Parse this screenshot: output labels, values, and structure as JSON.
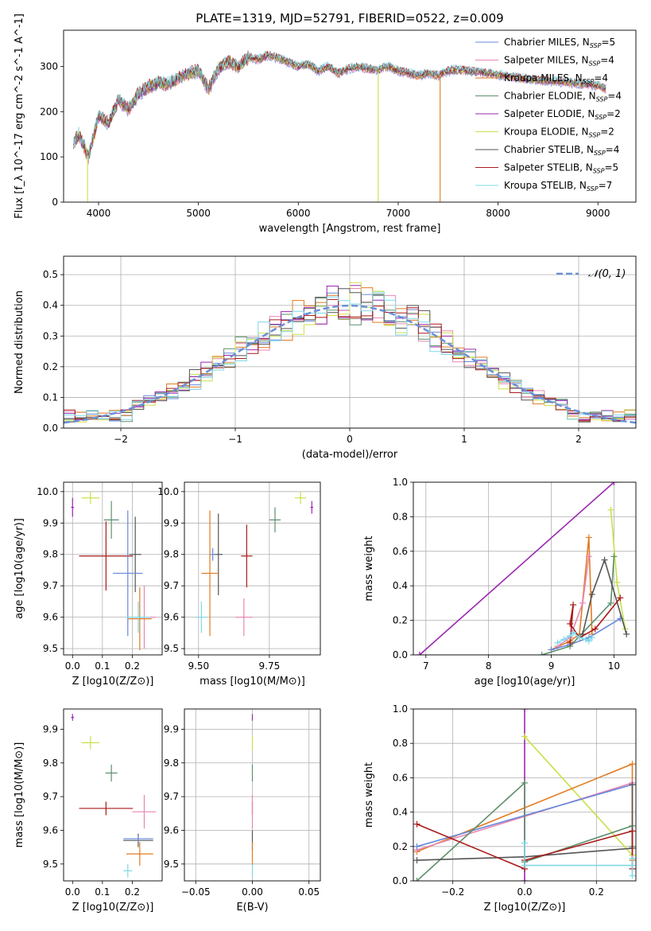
{
  "figure": {
    "title": "PLATE=1319, MJD=52791, FIBERID=0522, z=0.009"
  },
  "chart_data": [
    {
      "id": "spectrum",
      "type": "line",
      "xlabel": "wavelength [Angstrom, rest frame]",
      "ylabel": "Flux [f_λ 10^-17 erg cm^-2 s^-1 A^-1]",
      "xlim": [
        3650,
        9380
      ],
      "ylim": [
        0,
        380
      ],
      "xticks": [
        4000,
        5000,
        6000,
        7000,
        8000,
        9000
      ],
      "yticks": [
        0,
        100,
        200,
        300
      ],
      "legend_position": "top-right",
      "continuum": {
        "x": [
          3750,
          3800,
          3900,
          4000,
          4100,
          4200,
          4300,
          4400,
          4500,
          4600,
          4700,
          4800,
          4900,
          5000,
          5100,
          5200,
          5300,
          5400,
          5500,
          5600,
          5700,
          5800,
          5900,
          6000,
          6100,
          6200,
          6300,
          6400,
          6500,
          6600,
          6700,
          6800,
          6900,
          7000,
          7100,
          7200,
          7300,
          7400,
          7500,
          7600,
          7700,
          7800,
          7900,
          8000,
          8100,
          8200,
          8300,
          8400,
          8500,
          8600,
          8700,
          8800,
          8900,
          9000,
          9080
        ],
        "y": [
          130,
          150,
          100,
          190,
          175,
          225,
          205,
          240,
          255,
          265,
          260,
          275,
          285,
          290,
          250,
          295,
          310,
          300,
          320,
          315,
          325,
          318,
          310,
          300,
          305,
          290,
          300,
          285,
          295,
          300,
          295,
          292,
          300,
          290,
          285,
          280,
          285,
          280,
          290,
          293,
          290,
          288,
          285,
          282,
          278,
          275,
          272,
          270,
          268,
          266,
          265,
          262,
          260,
          258,
          250
        ]
      },
      "series": [
        {
          "name": "Chabrier MILES, N_SSP=5",
          "label_main": "Chabrier MILES, N",
          "label_sub": "SSP",
          "label_tail": "=5",
          "color": "#6688dd"
        },
        {
          "name": "Salpeter MILES, N_SSP=4",
          "label_main": "Salpeter MILES, N",
          "label_sub": "SSP",
          "label_tail": "=4",
          "color": "#e887b4"
        },
        {
          "name": "Kroupa MILES, N_SSP=4",
          "label_main": "Kroupa MILES, N",
          "label_sub": "SSP",
          "label_tail": "=4",
          "color": "#e07b22"
        },
        {
          "name": "Chabrier ELODIE, N_SSP=4",
          "label_main": "Chabrier ELODIE, N",
          "label_sub": "SSP",
          "label_tail": "=4",
          "color": "#5e8f6b"
        },
        {
          "name": "Salpeter ELODIE, N_SSP=2",
          "label_main": "Salpeter ELODIE, N",
          "label_sub": "SSP",
          "label_tail": "=2",
          "color": "#9b27af"
        },
        {
          "name": "Kroupa ELODIE, N_SSP=2",
          "label_main": "Kroupa ELODIE, N",
          "label_sub": "SSP",
          "label_tail": "=2",
          "color": "#c9e04a"
        },
        {
          "name": "Chabrier STELIB, N_SSP=4",
          "label_main": "Chabrier STELIB, N",
          "label_sub": "SSP",
          "label_tail": "=4",
          "color": "#555555"
        },
        {
          "name": "Salpeter STELIB, N_SSP=5",
          "label_main": "Salpeter STELIB, N",
          "label_sub": "SSP",
          "label_tail": "=5",
          "color": "#aa1a1a"
        },
        {
          "name": "Kroupa STELIB, N_SSP=7",
          "label_main": "Kroupa STELIB, N",
          "label_sub": "SSP",
          "label_tail": "=7",
          "color": "#7fd8e8"
        }
      ],
      "drops": [
        {
          "x": 3890,
          "color": "#c9e04a"
        },
        {
          "x": 6800,
          "color": "#c9e04a"
        },
        {
          "x": 7420,
          "color": "#e07b22"
        }
      ]
    },
    {
      "id": "residuals",
      "type": "histogram",
      "xlabel": "(data-model)/error",
      "ylabel": "Normed distribution",
      "xlim": [
        -2.5,
        2.5
      ],
      "ylim": [
        0,
        0.56
      ],
      "xticks": [
        -2,
        -1,
        0,
        1,
        2
      ],
      "xtick_labels": [
        "−2",
        "−1",
        "0",
        "1",
        "2"
      ],
      "yticks": [
        0.0,
        0.1,
        0.2,
        0.3,
        0.4,
        0.5
      ],
      "ytick_labels": [
        "0.0",
        "0.1",
        "0.2",
        "0.3",
        "0.4",
        "0.5"
      ],
      "bin_width": 0.1,
      "normal_curve": {
        "label": "𝒩(0, 1)",
        "color": "#6a8fd6"
      },
      "legend_position": "top-right"
    },
    {
      "id": "age-vs-Z",
      "type": "scatter",
      "xlabel": "Z [log10(Z/Z⊙)]",
      "ylabel": "age [log10(age/yr)]",
      "xlim": [
        -0.03,
        0.3
      ],
      "ylim": [
        9.48,
        10.03
      ],
      "xticks": [
        0.0,
        0.1,
        0.2
      ],
      "xtick_labels": [
        "0.0",
        "0.1",
        "0.2"
      ],
      "yticks": [
        9.5,
        9.6,
        9.7,
        9.8,
        9.9,
        10.0
      ],
      "ytick_labels": [
        "9.5",
        "9.6",
        "9.7",
        "9.8",
        "9.9",
        "10.0"
      ],
      "points": [
        {
          "x": 0.0,
          "y": 9.95,
          "xerr": 0.005,
          "yerr": 0.03,
          "color": "#9b27af"
        },
        {
          "x": 0.06,
          "y": 9.98,
          "xerr": 0.03,
          "yerr": 0.02,
          "color": "#c9e04a"
        },
        {
          "x": 0.13,
          "y": 9.91,
          "xerr": 0.025,
          "yerr": 0.06,
          "color": "#5e8f6b"
        },
        {
          "x": 0.112,
          "y": 9.795,
          "xerr": 0.09,
          "yerr": 0.11,
          "color": "#aa1a1a"
        },
        {
          "x": 0.21,
          "y": 9.8,
          "xerr": 0.02,
          "yerr": 0.12,
          "color": "#555555"
        },
        {
          "x": 0.185,
          "y": 9.74,
          "xerr": 0.05,
          "yerr": 0.2,
          "color": "#6688dd"
        },
        {
          "x": 0.24,
          "y": 9.6,
          "xerr": 0.04,
          "yerr": 0.1,
          "color": "#e887b4"
        },
        {
          "x": 0.225,
          "y": 9.595,
          "xerr": 0.04,
          "yerr": 0.1,
          "color": "#e07b22"
        },
        {
          "x": 0.22,
          "y": 9.6,
          "xerr": 0.04,
          "yerr": 0.05,
          "color": "#7fd8e8"
        }
      ]
    },
    {
      "id": "age-vs-mass",
      "type": "scatter",
      "xlabel": "mass [log10(M/M⊙)]",
      "xlim": [
        9.45,
        9.93
      ],
      "ylim": [
        9.48,
        10.03
      ],
      "xticks": [
        9.5,
        9.75
      ],
      "xtick_labels": [
        "9.50",
        "9.75"
      ],
      "yticks": [
        9.5,
        9.6,
        9.7,
        9.8,
        9.9,
        10.0
      ],
      "ytick_labels": [
        "9.5",
        "9.6",
        "9.7",
        "9.8",
        "9.9",
        "10.0"
      ],
      "points": [
        {
          "x": 9.9,
          "y": 9.95,
          "xerr": 0.005,
          "yerr": 0.02,
          "color": "#9b27af"
        },
        {
          "x": 9.86,
          "y": 9.98,
          "xerr": 0.02,
          "yerr": 0.02,
          "color": "#c9e04a"
        },
        {
          "x": 9.77,
          "y": 9.91,
          "xerr": 0.02,
          "yerr": 0.04,
          "color": "#5e8f6b"
        },
        {
          "x": 9.67,
          "y": 9.795,
          "xerr": 0.02,
          "yerr": 0.1,
          "color": "#aa1a1a"
        },
        {
          "x": 9.57,
          "y": 9.8,
          "xerr": 0.015,
          "yerr": 0.13,
          "color": "#555555"
        },
        {
          "x": 9.55,
          "y": 9.8,
          "xerr": 0.01,
          "yerr": 0.02,
          "color": "#6688dd"
        },
        {
          "x": 9.54,
          "y": 9.74,
          "xerr": 0.03,
          "yerr": 0.2,
          "color": "#e07b22"
        },
        {
          "x": 9.66,
          "y": 9.6,
          "xerr": 0.03,
          "yerr": 0.06,
          "color": "#e887b4"
        },
        {
          "x": 9.51,
          "y": 9.6,
          "xerr": 0.02,
          "yerr": 0.05,
          "color": "#7fd8e8"
        }
      ]
    },
    {
      "id": "weight-vs-age",
      "type": "line",
      "xlabel": "age [log10(age/yr)]",
      "ylabel": "mass weight",
      "xlim": [
        6.8,
        10.35
      ],
      "ylim": [
        0,
        1
      ],
      "xticks": [
        7,
        8,
        9,
        10
      ],
      "xtick_labels": [
        "7",
        "8",
        "9",
        "10"
      ],
      "yticks": [
        0.0,
        0.2,
        0.4,
        0.6,
        0.8,
        1.0
      ],
      "ytick_labels": [
        "0.0",
        "0.2",
        "0.4",
        "0.6",
        "0.8",
        "1.0"
      ],
      "series": [
        {
          "name": "Salpeter ELODIE",
          "color": "#9b27af",
          "x": [
            6.9,
            10.0
          ],
          "y": [
            0.0,
            1.0
          ]
        },
        {
          "name": "Kroupa ELODIE",
          "color": "#c9e04a",
          "x": [
            9.95,
            10.05,
            10.18
          ],
          "y": [
            0.84,
            0.42,
            0.15
          ]
        },
        {
          "name": "Kroupa MILES",
          "color": "#e07b22",
          "x": [
            9.0,
            9.3,
            9.45,
            9.6,
            9.65
          ],
          "y": [
            0.03,
            0.08,
            0.12,
            0.68,
            0.12
          ]
        },
        {
          "name": "Salpeter MILES",
          "color": "#e887b4",
          "x": [
            9.1,
            9.3,
            9.5,
            9.6
          ],
          "y": [
            0.05,
            0.1,
            0.3,
            0.57
          ]
        },
        {
          "name": "Chabrier MILES",
          "color": "#6688dd",
          "x": [
            9.0,
            9.3,
            9.6,
            10.1
          ],
          "y": [
            0.03,
            0.06,
            0.1,
            0.21
          ]
        },
        {
          "name": "Chabrier ELODIE",
          "color": "#5e8f6b",
          "x": [
            8.85,
            9.3,
            9.95,
            10.0
          ],
          "y": [
            0.0,
            0.05,
            0.3,
            0.57
          ]
        },
        {
          "name": "Chabrier STELIB",
          "color": "#555555",
          "x": [
            9.5,
            9.65,
            9.85,
            10.2
          ],
          "y": [
            0.12,
            0.35,
            0.55,
            0.12
          ]
        },
        {
          "name": "Salpeter STELIB",
          "color": "#aa1a1a",
          "x": [
            9.3,
            9.35,
            9.3,
            9.45,
            9.7,
            10.1
          ],
          "y": [
            0.07,
            0.29,
            0.18,
            0.1,
            0.15,
            0.33
          ]
        },
        {
          "name": "Kroupa STELIB",
          "color": "#7fd8e8",
          "x": [
            9.1,
            9.2,
            9.3,
            9.35,
            9.45,
            9.55,
            9.6,
            9.65
          ],
          "y": [
            0.07,
            0.09,
            0.11,
            0.13,
            0.1,
            0.09,
            0.08,
            0.1
          ]
        }
      ]
    },
    {
      "id": "mass-vs-Z",
      "type": "scatter",
      "xlabel": "Z [log10(Z/Z⊙)]",
      "ylabel": "mass [log10(M/M⊙)]",
      "xlim": [
        -0.03,
        0.3
      ],
      "ylim": [
        9.45,
        9.96
      ],
      "xticks": [
        0.0,
        0.1,
        0.2
      ],
      "xtick_labels": [
        "0.0",
        "0.1",
        "0.2"
      ],
      "yticks": [
        9.5,
        9.6,
        9.7,
        9.8,
        9.9
      ],
      "ytick_labels": [
        "9.5",
        "9.6",
        "9.7",
        "9.8",
        "9.9"
      ],
      "points": [
        {
          "x": 0.0,
          "y": 9.935,
          "xerr": 0.005,
          "yerr": 0.01,
          "color": "#9b27af"
        },
        {
          "x": 0.06,
          "y": 9.86,
          "xerr": 0.03,
          "yerr": 0.02,
          "color": "#c9e04a"
        },
        {
          "x": 0.13,
          "y": 9.77,
          "xerr": 0.02,
          "yerr": 0.025,
          "color": "#5e8f6b"
        },
        {
          "x": 0.112,
          "y": 9.665,
          "xerr": 0.09,
          "yerr": 0.02,
          "color": "#aa1a1a"
        },
        {
          "x": 0.24,
          "y": 9.655,
          "xerr": 0.04,
          "yerr": 0.05,
          "color": "#e887b4"
        },
        {
          "x": 0.22,
          "y": 9.57,
          "xerr": 0.05,
          "yerr": 0.02,
          "color": "#555555"
        },
        {
          "x": 0.22,
          "y": 9.575,
          "xerr": 0.05,
          "yerr": 0.01,
          "color": "#6688dd"
        },
        {
          "x": 0.225,
          "y": 9.53,
          "xerr": 0.045,
          "yerr": 0.035,
          "color": "#e07b22"
        },
        {
          "x": 0.185,
          "y": 9.48,
          "xerr": 0.015,
          "yerr": 0.02,
          "color": "#7fd8e8"
        }
      ]
    },
    {
      "id": "mass-vs-ebv",
      "type": "scatter",
      "xlabel": "E(B-V)",
      "xlim": [
        -0.06,
        0.06
      ],
      "ylim": [
        9.45,
        9.96
      ],
      "xticks": [
        -0.05,
        0.0,
        0.05
      ],
      "xtick_labels": [
        "−0.05",
        "0.00",
        "0.05"
      ],
      "yticks": [
        9.5,
        9.6,
        9.7,
        9.8,
        9.9
      ],
      "ytick_labels": [
        "9.5",
        "9.6",
        "9.7",
        "9.8",
        "9.9"
      ],
      "points": [
        {
          "x": 0.0,
          "y": 9.935,
          "xerr": 0.0,
          "yerr": 0.01,
          "color": "#9b27af"
        },
        {
          "x": 0.0,
          "y": 9.86,
          "xerr": 0.0,
          "yerr": 0.02,
          "color": "#c9e04a"
        },
        {
          "x": 0.0,
          "y": 9.77,
          "xerr": 0.0,
          "yerr": 0.025,
          "color": "#5e8f6b"
        },
        {
          "x": 0.0,
          "y": 9.665,
          "xerr": 0.0,
          "yerr": 0.02,
          "color": "#aa1a1a"
        },
        {
          "x": 0.0,
          "y": 9.655,
          "xerr": 0.0,
          "yerr": 0.05,
          "color": "#e887b4"
        },
        {
          "x": 0.0,
          "y": 9.57,
          "xerr": 0.0,
          "yerr": 0.03,
          "color": "#555555"
        },
        {
          "x": 0.0,
          "y": 9.53,
          "xerr": 0.0,
          "yerr": 0.035,
          "color": "#e07b22"
        },
        {
          "x": 0.0,
          "y": 9.48,
          "xerr": 0.0,
          "yerr": 0.02,
          "color": "#7fd8e8"
        }
      ]
    },
    {
      "id": "weight-vs-Z",
      "type": "line",
      "xlabel": "Z [log10(Z/Z⊙)]",
      "ylabel": "mass weight",
      "xlim": [
        -0.31,
        0.31
      ],
      "ylim": [
        0,
        1
      ],
      "xticks": [
        -0.2,
        0.0,
        0.2
      ],
      "xtick_labels": [
        "−0.2",
        "0.0",
        "0.2"
      ],
      "yticks": [
        0.0,
        0.2,
        0.4,
        0.6,
        0.8,
        1.0
      ],
      "ytick_labels": [
        "0.0",
        "0.2",
        "0.4",
        "0.6",
        "0.8",
        "1.0"
      ],
      "series": [
        {
          "name": "Salpeter ELODIE",
          "color": "#9b27af",
          "x": [
            0.0,
            0.0
          ],
          "y": [
            0.0,
            1.0
          ]
        },
        {
          "name": "Kroupa ELODIE",
          "color": "#c9e04a",
          "x": [
            0.0,
            0.3
          ],
          "y": [
            0.84,
            0.15
          ]
        },
        {
          "name": "Kroupa MILES",
          "color": "#e07b22",
          "x": [
            -0.3,
            0.3,
            0.3
          ],
          "y": [
            0.17,
            0.68,
            0.12
          ]
        },
        {
          "name": "Salpeter MILES",
          "color": "#e887b4",
          "x": [
            -0.3,
            0.3
          ],
          "y": [
            0.18,
            0.57
          ]
        },
        {
          "name": "Chabrier MILES",
          "color": "#6688dd",
          "x": [
            -0.3,
            0.3
          ],
          "y": [
            0.2,
            0.56
          ]
        },
        {
          "name": "Chabrier ELODIE",
          "color": "#5e8f6b",
          "x": [
            -0.3,
            0.0,
            0.0,
            0.3,
            0.3
          ],
          "y": [
            0.0,
            0.57,
            0.11,
            0.32,
            0.2
          ]
        },
        {
          "name": "Chabrier STELIB",
          "color": "#555555",
          "x": [
            -0.3,
            0.0,
            0.3,
            0.3
          ],
          "y": [
            0.12,
            0.14,
            0.19,
            0.56
          ]
        },
        {
          "name": "Salpeter STELIB",
          "color": "#aa1a1a",
          "x": [
            -0.3,
            0.0,
            0.0,
            0.3,
            0.3
          ],
          "y": [
            0.33,
            0.07,
            0.12,
            0.29,
            0.07
          ]
        },
        {
          "name": "Kroupa STELIB",
          "color": "#7fd8e8",
          "x": [
            0.0,
            0.0,
            0.3,
            0.3,
            0.3
          ],
          "y": [
            0.22,
            0.09,
            0.09,
            0.13,
            0.03
          ]
        }
      ]
    }
  ]
}
